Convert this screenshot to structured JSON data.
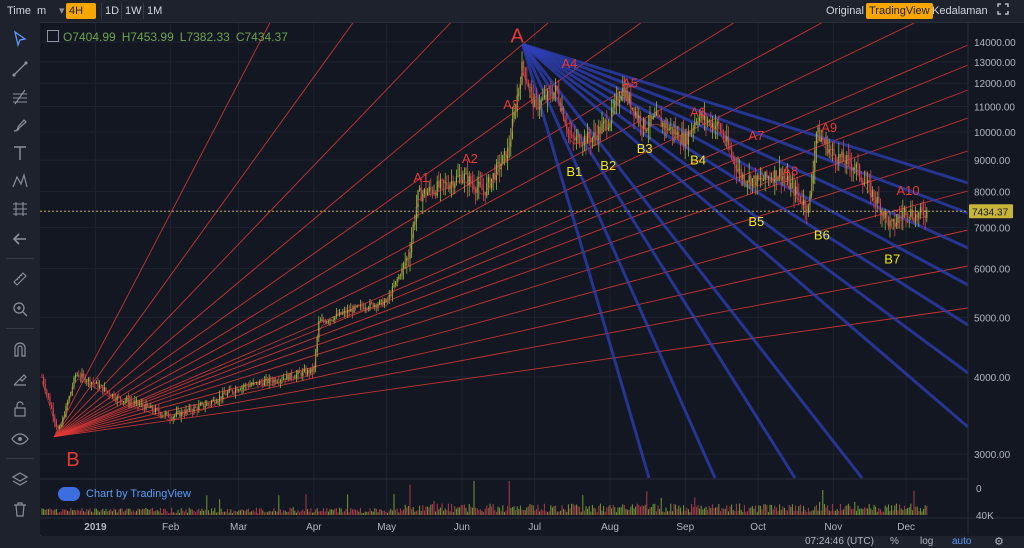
{
  "toolbar": {
    "time_label": "Time",
    "minutes_label": "m",
    "interval_active": "4H",
    "intervals": [
      "1D",
      "1W",
      "1M"
    ],
    "right_tabs": [
      "Original",
      "TradingView",
      "Kedalaman"
    ],
    "right_tab_active": "TradingView",
    "expand_icon": "expand-icon"
  },
  "legend": {
    "open": "O7404.99",
    "high": "H7453.99",
    "low": "L7382.33",
    "close": "C7434.37"
  },
  "price_axis": {
    "ticks": [
      "14000.00",
      "13000.00",
      "12000.00",
      "11000.00",
      "10000.00",
      "9000.00",
      "8000.00",
      "7000.00",
      "6000.00",
      "5000.00",
      "4000.00",
      "3000.00"
    ],
    "last_price": "7434.37"
  },
  "volume_axis": {
    "ticks": [
      "40K",
      "0"
    ]
  },
  "time_axis": {
    "ticks": [
      "2019",
      "Feb",
      "Mar",
      "Apr",
      "May",
      "Jun",
      "Jul",
      "Aug",
      "Sep",
      "Oct",
      "Nov",
      "Dec"
    ]
  },
  "annotations": {
    "big_a": "A",
    "big_b": "B",
    "a_labels": [
      "A1",
      "A2",
      "A3",
      "A4",
      "A5",
      "A6",
      "A7",
      "A8",
      "A9",
      "A10"
    ],
    "b_labels": [
      "B1",
      "B2",
      "B3",
      "B4",
      "B5",
      "B6",
      "B7"
    ]
  },
  "watermark": "Chart by TradingView",
  "bottom": {
    "clock": "07:24:46 (UTC)",
    "percent": "%",
    "log": "log",
    "auto": "auto",
    "settings_icon": "gear-icon"
  },
  "colors": {
    "background": "#131722",
    "fan_red": "#e53935",
    "fan_blue": "#2e3fb8",
    "price_line": "#c9b43a",
    "active_tab": "#f7a600",
    "label_red": "#e53935",
    "label_yellow": "#f2e51e",
    "last_price_badge": "#c9b43a"
  },
  "chart_data": {
    "type": "line",
    "title": "",
    "xlabel": "",
    "ylabel": "",
    "ylim": [
      2600,
      14600
    ],
    "scale": "log",
    "x": [
      "2018-12-10",
      "2018-12-17",
      "2018-12-24",
      "2019-01-01",
      "2019-01-10",
      "2019-01-20",
      "2019-02-01",
      "2019-02-15",
      "2019-03-01",
      "2019-03-15",
      "2019-04-01",
      "2019-04-03",
      "2019-04-20",
      "2019-05-01",
      "2019-05-10",
      "2019-05-14",
      "2019-05-25",
      "2019-06-01",
      "2019-06-10",
      "2019-06-20",
      "2019-06-26",
      "2019-07-01",
      "2019-07-10",
      "2019-07-16",
      "2019-07-25",
      "2019-08-01",
      "2019-08-06",
      "2019-08-15",
      "2019-08-20",
      "2019-09-01",
      "2019-09-06",
      "2019-09-15",
      "2019-09-24",
      "2019-10-01",
      "2019-10-10",
      "2019-10-22",
      "2019-10-25",
      "2019-11-01",
      "2019-11-10",
      "2019-11-20",
      "2019-11-25",
      "2019-12-01",
      "2019-12-05",
      "2019-12-10"
    ],
    "series": [
      {
        "values": [
          4000,
          3250,
          4050,
          3900,
          3700,
          3600,
          3450,
          3600,
          3850,
          3950,
          4100,
          4900,
          5200,
          5300,
          6300,
          7900,
          8200,
          8500,
          8000,
          9300,
          12900,
          11000,
          11700,
          9700,
          9800,
          10500,
          11800,
          10200,
          10500,
          9700,
          10600,
          10200,
          8500,
          8300,
          8600,
          7500,
          10000,
          9200,
          8800,
          7600,
          7000,
          7500,
          7300,
          7450
        ]
      }
    ],
    "pivots": {
      "A": {
        "date": "2019-06-26",
        "price": 13880
      },
      "B": {
        "date": "2018-12-15",
        "price": 3200
      }
    },
    "volume": {
      "ylim": [
        0,
        50000
      ],
      "ticks": [
        0,
        40000
      ]
    },
    "last_price": 7434.37,
    "grid": true,
    "legend": "none"
  }
}
